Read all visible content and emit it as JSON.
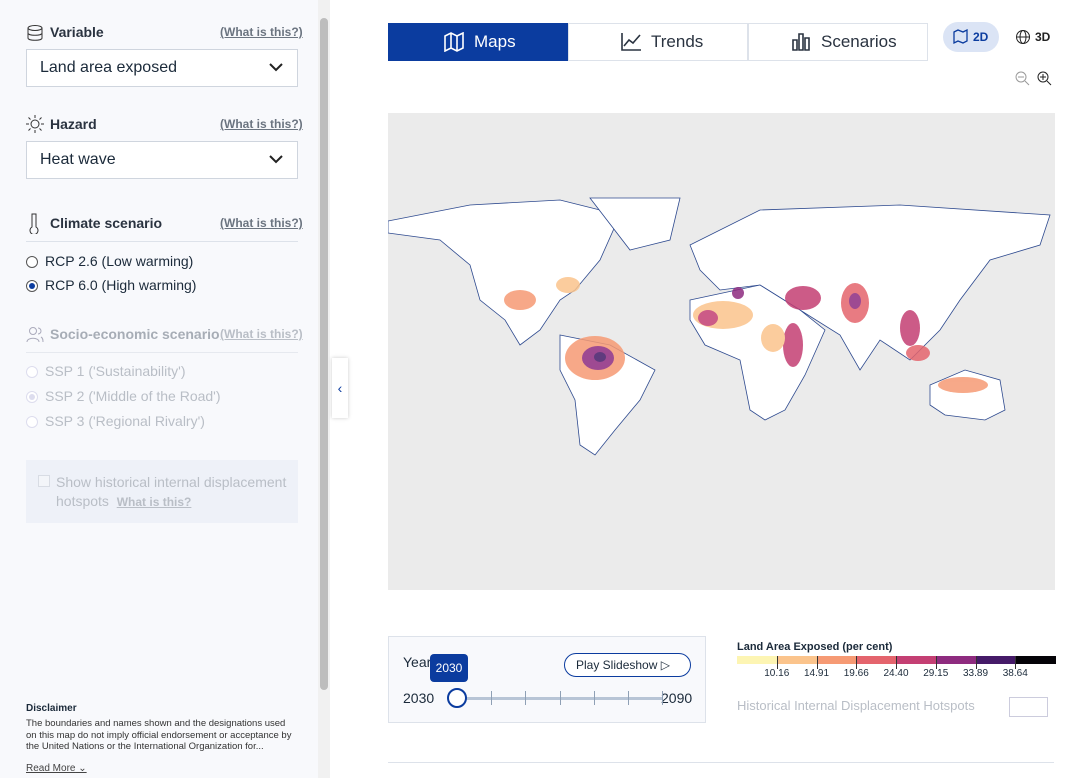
{
  "sidebar": {
    "variable": {
      "label": "Variable",
      "help": "(What is this?)",
      "selected": "Land area exposed"
    },
    "hazard": {
      "label": "Hazard",
      "help": "(What is this?)",
      "selected": "Heat wave"
    },
    "climate_scenario": {
      "label": "Climate scenario",
      "help": "(What is this?)",
      "options": [
        "RCP 2.6 (Low warming)",
        "RCP 6.0 (High warming)"
      ],
      "selected": 1
    },
    "socio_economic_scenario": {
      "label": "Socio-economic scenario",
      "help": "(What is this?)",
      "options": [
        "SSP 1 ('Sustainability')",
        "SSP 2 ('Middle of the Road')",
        "SSP 3 ('Regional Rivalry')"
      ],
      "selected": 1
    },
    "hotspots": {
      "label": "Show historical internal displacement hotspots",
      "help": "What is this?"
    },
    "disclaimer": {
      "title": "Disclaimer",
      "text": "The boundaries and names shown and the designations used on this map do not imply official endorsement or acceptance by the United Nations or the International Organization for...",
      "read_more": "Read More"
    }
  },
  "tabs": [
    "Maps",
    "Trends",
    "Scenarios"
  ],
  "active_tab": 0,
  "view_modes": [
    "2D",
    "3D"
  ],
  "active_view": 0,
  "slider": {
    "label": "Year",
    "value": 2030,
    "min": 2030,
    "max": 2090,
    "play": "Play Slideshow"
  },
  "legend": {
    "title": "Land Area Exposed (per cent)",
    "breaks": [
      10.16,
      14.91,
      19.66,
      {
        "value": 24.4,
        "label": "24.40"
      },
      29.15,
      33.89,
      38.64
    ],
    "colors": [
      "#fdf5b3",
      "#fbc48c",
      "#f69a74",
      "#e4646d",
      "#c43f73",
      "#8e2b7f",
      "#451a68",
      "#050308"
    ],
    "hotspots_label": "Historical Internal Displacement Hotspots"
  }
}
